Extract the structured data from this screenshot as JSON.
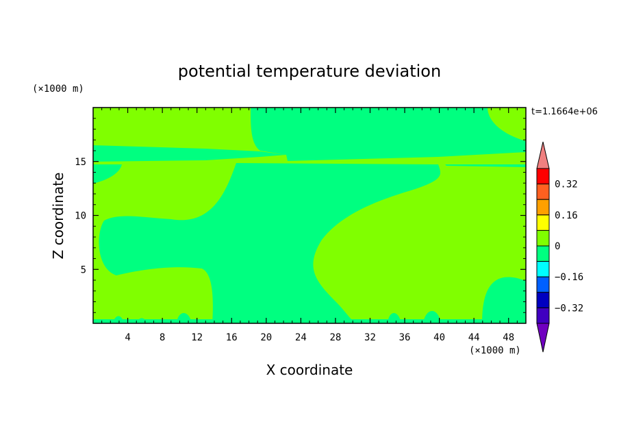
{
  "chart_data": {
    "type": "contour",
    "title": "potential temperature deviation",
    "xlabel": "X coordinate",
    "ylabel": "Z coordinate",
    "x_scale_label": "(×1000 m)",
    "y_scale_label": "(×1000 m)",
    "time_label": "t=1.1664e+06",
    "xlim": [
      0,
      50
    ],
    "ylim": [
      0,
      20
    ],
    "x_ticks": [
      4,
      8,
      12,
      16,
      20,
      24,
      28,
      32,
      36,
      40,
      44,
      48
    ],
    "y_ticks": [
      5,
      10,
      15
    ],
    "colorbar": {
      "levels": [
        -0.4,
        -0.32,
        -0.24,
        -0.16,
        -0.08,
        0,
        0.08,
        0.16,
        0.24,
        0.32,
        0.4
      ],
      "labels": [
        "0.32",
        "0.16",
        "0",
        "−0.16",
        "−0.32"
      ],
      "label_values": [
        0.32,
        0.16,
        0,
        -0.16,
        -0.32
      ],
      "colors_top_to_bottom": [
        "#f08080",
        "#ff0000",
        "#ff6020",
        "#ffa000",
        "#ffff00",
        "#80ff00",
        "#00ff80",
        "#00ffff",
        "#0060ff",
        "#0000c0",
        "#4000c0",
        "#7000c0"
      ]
    },
    "fields": {
      "positive_color": "#80ff00",
      "negative_color": "#00ff80"
    }
  }
}
